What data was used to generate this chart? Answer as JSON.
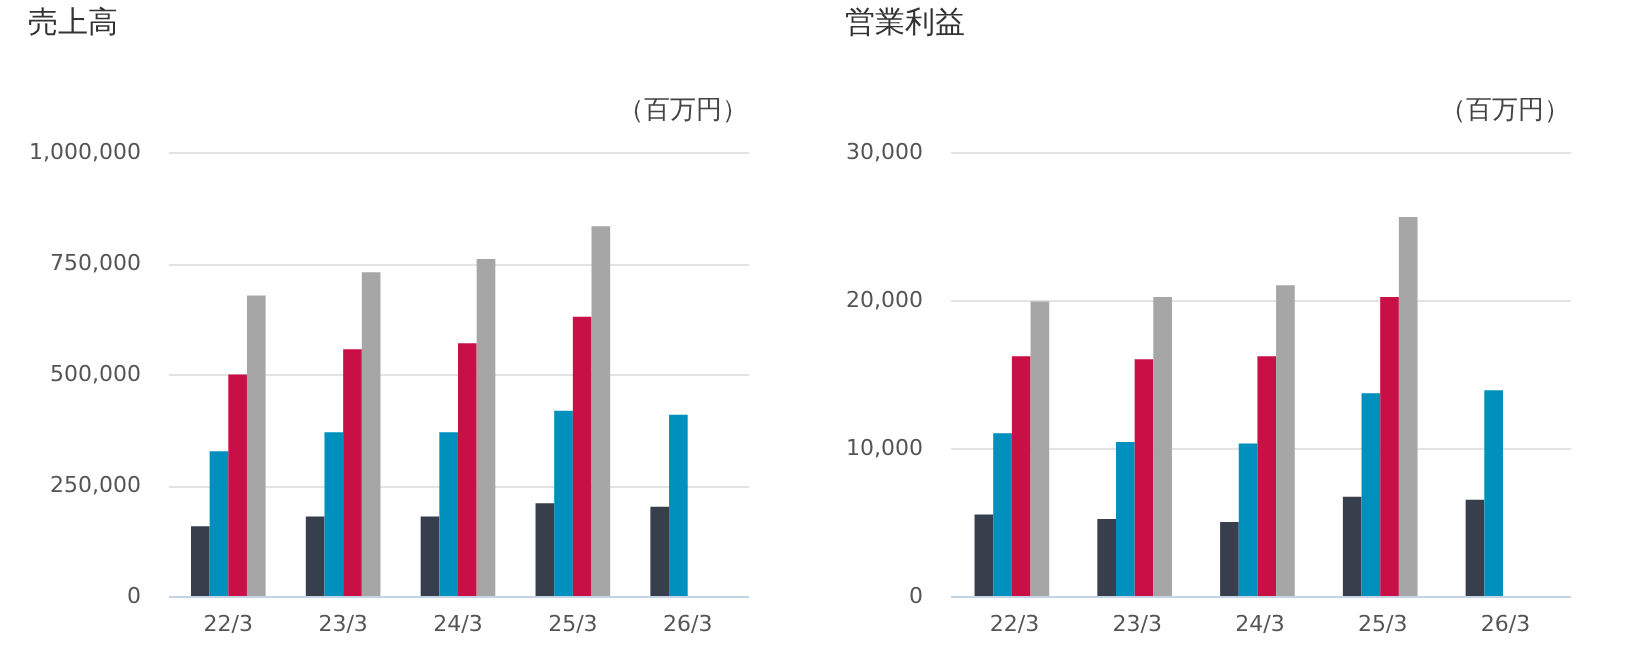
{
  "chart_data": [
    {
      "type": "bar",
      "title": "売上高",
      "subtitle": "（百万円）",
      "categories": [
        "22/3",
        "23/3",
        "24/3",
        "25/3",
        "26/3"
      ],
      "series": [
        {
          "color": "#373f4d",
          "values": [
            157000,
            179000,
            179000,
            209000,
            201000
          ]
        },
        {
          "color": "#0090bd",
          "values": [
            326000,
            369000,
            369000,
            417000,
            408000
          ]
        },
        {
          "color": "#c80f46",
          "values": [
            499000,
            556000,
            569000,
            629000,
            null
          ]
        },
        {
          "color": "#a6a6a6",
          "values": [
            677000,
            729000,
            759000,
            833000,
            null
          ]
        }
      ],
      "ylim": [
        0,
        1000000
      ],
      "yticks": [
        {
          "value": 0,
          "label": "0"
        },
        {
          "value": 250000,
          "label": "250,000"
        },
        {
          "value": 500000,
          "label": "500,000"
        },
        {
          "value": 750000,
          "label": "750,000"
        },
        {
          "value": 1000000,
          "label": "1,000,000"
        }
      ],
      "grid": "y",
      "legend": false
    },
    {
      "type": "bar",
      "title": "営業利益",
      "subtitle": "（百万円）",
      "categories": [
        "22/3",
        "23/3",
        "24/3",
        "25/3",
        "26/3"
      ],
      "series": [
        {
          "color": "#373f4d",
          "values": [
            5500,
            5200,
            5000,
            6700,
            6500
          ]
        },
        {
          "color": "#0090bd",
          "values": [
            11000,
            10400,
            10300,
            13700,
            13900
          ]
        },
        {
          "color": "#c80f46",
          "values": [
            16200,
            16000,
            16200,
            20200,
            null
          ]
        },
        {
          "color": "#a6a6a6",
          "values": [
            19900,
            20200,
            21000,
            25600,
            null
          ]
        }
      ],
      "ylim": [
        0,
        30000
      ],
      "yticks": [
        {
          "value": 0,
          "label": "0"
        },
        {
          "value": 10000,
          "label": "10,000"
        },
        {
          "value": 20000,
          "label": "20,000"
        },
        {
          "value": 30000,
          "label": "30,000"
        }
      ],
      "grid": "y",
      "legend": false
    }
  ]
}
